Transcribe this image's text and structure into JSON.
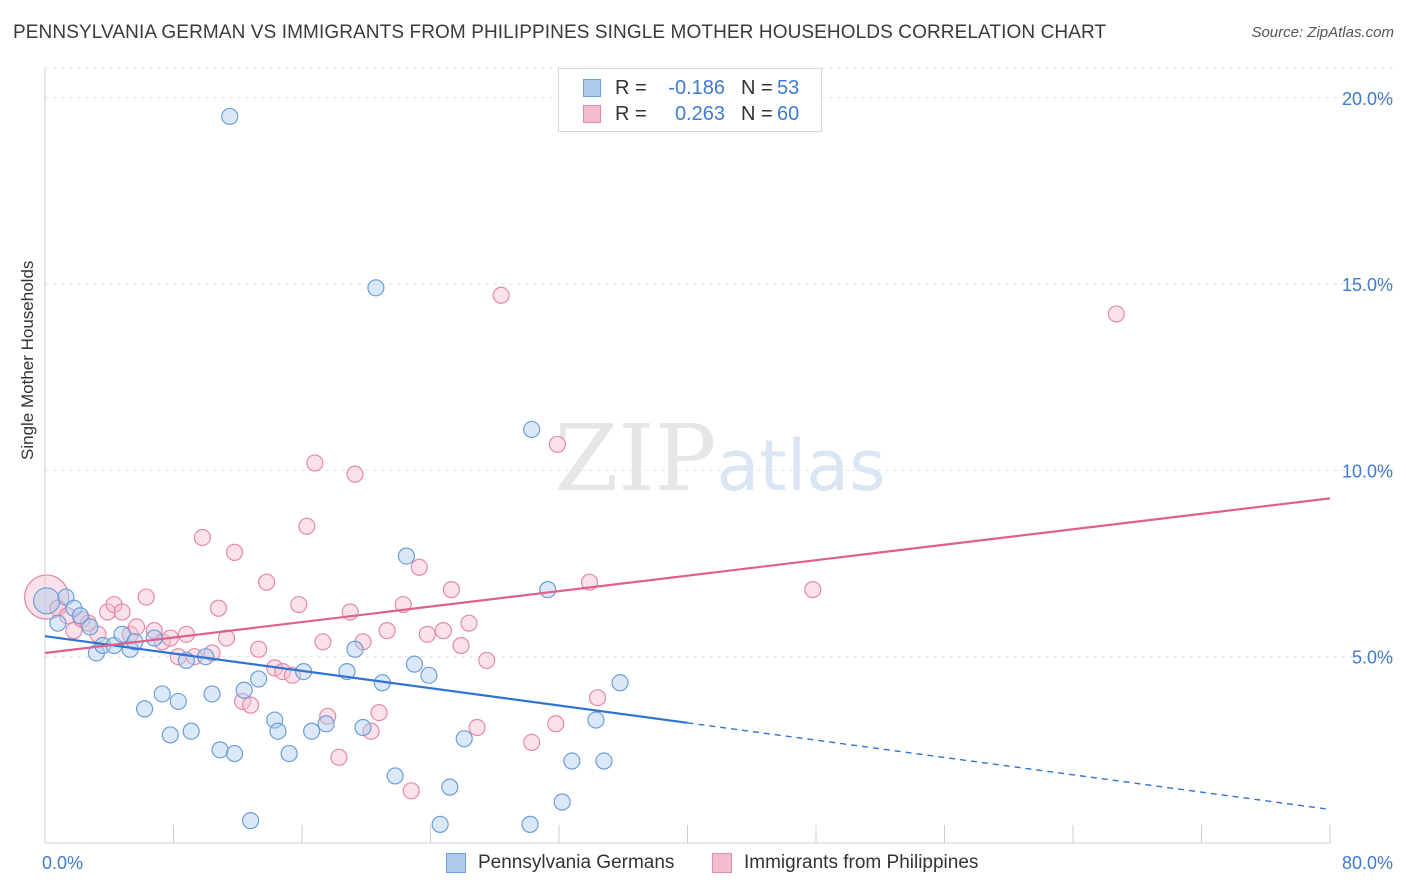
{
  "chart_data": {
    "type": "scatter",
    "title": "PENNSYLVANIA GERMAN VS IMMIGRANTS FROM PHILIPPINES SINGLE MOTHER HOUSEHOLDS CORRELATION CHART",
    "source": "Source: ZipAtlas.com",
    "ylabel": "Single Mother Households",
    "xlabel": "",
    "xlim": [
      0,
      80
    ],
    "ylim": [
      0,
      20.8
    ],
    "x_tick_labels": [
      "0.0%",
      "80.0%"
    ],
    "y_ticks": [
      {
        "value": 5,
        "label": "5.0%"
      },
      {
        "value": 10,
        "label": "10.0%"
      },
      {
        "value": 15,
        "label": "15.0%"
      },
      {
        "value": 20,
        "label": "20.0%"
      }
    ],
    "watermark": "ZIPatlas",
    "colors": {
      "blue_fill": "#aecbee",
      "blue_edge": "#6c9fd8",
      "blue_line": "#2f74d0",
      "pink_fill": "#f5bcd0",
      "pink_edge": "#e58aa9",
      "pink_line": "#e0608c",
      "accent_text": "#3f7bd0"
    },
    "legend_stats": [
      {
        "r_label": "R =",
        "r_value": "-0.186",
        "n_label": "N =",
        "n_value": "53"
      },
      {
        "r_label": "R =",
        "r_value": "0.263",
        "n_label": "N =",
        "n_value": "60"
      }
    ],
    "series": [
      {
        "name": "Pennsylvania Germans",
        "color": "blue",
        "trend": {
          "x0": 0,
          "y0": 5.55,
          "x1": 80,
          "y1": 0.9,
          "solid_until": 40
        },
        "points": [
          [
            0.1,
            6.5
          ],
          [
            0.8,
            5.9
          ],
          [
            1.3,
            6.6
          ],
          [
            1.8,
            6.3
          ],
          [
            2.2,
            6.1
          ],
          [
            2.8,
            5.8
          ],
          [
            3.2,
            5.1
          ],
          [
            3.6,
            5.3
          ],
          [
            4.3,
            5.3
          ],
          [
            4.8,
            5.6
          ],
          [
            5.3,
            5.2
          ],
          [
            5.6,
            5.4
          ],
          [
            6.2,
            3.6
          ],
          [
            6.8,
            5.5
          ],
          [
            7.3,
            4.0
          ],
          [
            7.8,
            2.9
          ],
          [
            8.3,
            3.8
          ],
          [
            8.8,
            4.9
          ],
          [
            9.1,
            3.0
          ],
          [
            10.0,
            5.0
          ],
          [
            10.4,
            4.0
          ],
          [
            10.9,
            2.5
          ],
          [
            11.5,
            19.5
          ],
          [
            11.8,
            2.4
          ],
          [
            12.4,
            4.1
          ],
          [
            12.8,
            0.6
          ],
          [
            13.3,
            4.4
          ],
          [
            14.3,
            3.3
          ],
          [
            14.5,
            3.0
          ],
          [
            15.2,
            2.4
          ],
          [
            16.1,
            4.6
          ],
          [
            16.6,
            3.0
          ],
          [
            17.5,
            3.2
          ],
          [
            18.8,
            4.6
          ],
          [
            19.3,
            5.2
          ],
          [
            19.8,
            3.1
          ],
          [
            20.6,
            14.9
          ],
          [
            21.0,
            4.3
          ],
          [
            21.8,
            1.8
          ],
          [
            22.5,
            7.7
          ],
          [
            23.0,
            4.8
          ],
          [
            23.9,
            4.5
          ],
          [
            24.6,
            0.5
          ],
          [
            25.2,
            1.5
          ],
          [
            26.1,
            2.8
          ],
          [
            30.3,
            11.1
          ],
          [
            30.2,
            0.5
          ],
          [
            31.3,
            6.8
          ],
          [
            32.2,
            1.1
          ],
          [
            32.8,
            2.2
          ],
          [
            34.3,
            3.3
          ],
          [
            34.8,
            2.2
          ],
          [
            35.8,
            4.3
          ]
        ]
      },
      {
        "name": "Immigrants from Philippines",
        "color": "pink",
        "trend": {
          "x0": 0,
          "y0": 5.1,
          "x1": 80,
          "y1": 9.25,
          "solid_until": 80
        },
        "points": [
          [
            0.1,
            6.6
          ],
          [
            0.8,
            6.3
          ],
          [
            1.4,
            6.1
          ],
          [
            1.8,
            5.7
          ],
          [
            2.3,
            6.0
          ],
          [
            2.7,
            5.9
          ],
          [
            3.3,
            5.6
          ],
          [
            3.9,
            6.2
          ],
          [
            4.3,
            6.4
          ],
          [
            4.8,
            6.2
          ],
          [
            5.3,
            5.6
          ],
          [
            5.7,
            5.8
          ],
          [
            6.3,
            6.6
          ],
          [
            6.8,
            5.7
          ],
          [
            7.3,
            5.4
          ],
          [
            7.8,
            5.5
          ],
          [
            8.3,
            5.0
          ],
          [
            8.8,
            5.6
          ],
          [
            9.3,
            5.0
          ],
          [
            9.8,
            8.2
          ],
          [
            10.4,
            5.1
          ],
          [
            10.8,
            6.3
          ],
          [
            11.3,
            5.5
          ],
          [
            11.8,
            7.8
          ],
          [
            12.3,
            3.8
          ],
          [
            12.8,
            3.7
          ],
          [
            13.3,
            5.2
          ],
          [
            13.8,
            7.0
          ],
          [
            14.3,
            4.7
          ],
          [
            14.8,
            4.6
          ],
          [
            15.4,
            4.5
          ],
          [
            15.8,
            6.4
          ],
          [
            16.3,
            8.5
          ],
          [
            16.8,
            10.2
          ],
          [
            17.3,
            5.4
          ],
          [
            17.6,
            3.4
          ],
          [
            18.3,
            2.3
          ],
          [
            19.0,
            6.2
          ],
          [
            19.3,
            9.9
          ],
          [
            19.8,
            5.4
          ],
          [
            20.3,
            3.0
          ],
          [
            20.8,
            3.5
          ],
          [
            21.3,
            5.7
          ],
          [
            22.3,
            6.4
          ],
          [
            22.8,
            1.4
          ],
          [
            23.3,
            7.4
          ],
          [
            23.8,
            5.6
          ],
          [
            24.8,
            5.7
          ],
          [
            25.3,
            6.8
          ],
          [
            25.9,
            5.3
          ],
          [
            26.4,
            5.9
          ],
          [
            26.9,
            3.1
          ],
          [
            27.5,
            4.9
          ],
          [
            28.4,
            14.7
          ],
          [
            30.3,
            2.7
          ],
          [
            31.8,
            3.2
          ],
          [
            31.9,
            10.7
          ],
          [
            33.9,
            7.0
          ],
          [
            34.4,
            3.9
          ],
          [
            47.8,
            6.8
          ],
          [
            66.7,
            14.2
          ]
        ]
      }
    ]
  }
}
